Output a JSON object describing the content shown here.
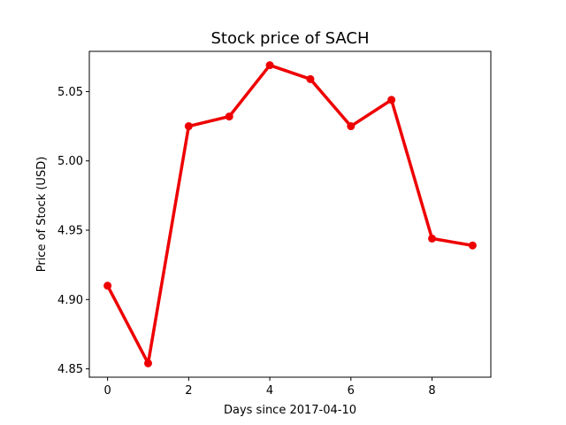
{
  "chart_data": {
    "type": "line",
    "title": "Stock price of SACH",
    "xlabel": "Days since 2017-04-10",
    "ylabel": "Price of Stock (USD)",
    "x": [
      0,
      1,
      2,
      3,
      4,
      5,
      6,
      7,
      8,
      9
    ],
    "series": [
      {
        "values": [
          4.91,
          4.854,
          5.025,
          5.032,
          5.069,
          5.059,
          5.025,
          5.044,
          4.944,
          4.939
        ]
      }
    ],
    "xlim": [
      -0.45,
      9.45
    ],
    "ylim": [
      4.844,
      5.079
    ],
    "xticks": [
      0,
      2,
      4,
      6,
      8
    ],
    "xtick_labels": [
      "0",
      "2",
      "4",
      "6",
      "8"
    ],
    "yticks": [
      4.85,
      4.9,
      4.95,
      5.0,
      5.05
    ],
    "ytick_labels": [
      "4.85",
      "4.90",
      "4.95",
      "5.00",
      "5.05"
    ],
    "grid": false,
    "legend": "none",
    "line_color": "#ee0000",
    "marker": "circle"
  }
}
